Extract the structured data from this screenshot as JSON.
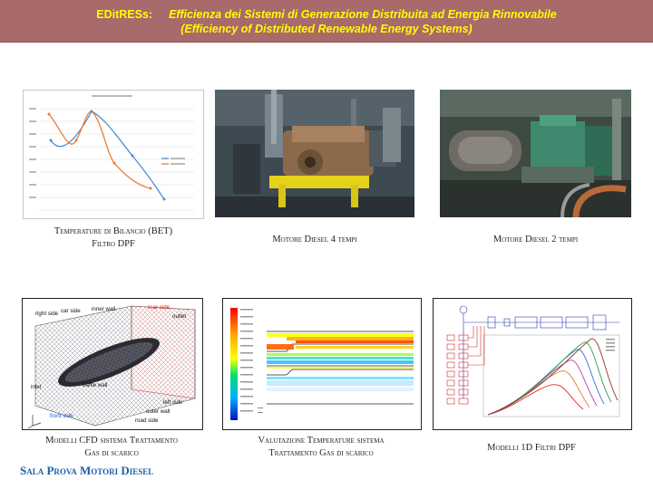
{
  "header": {
    "acronym": "EDitRESs:",
    "title_it": "Efficienza dei Sistemi di Generazione Distribuita ad Energia Rinnovabile",
    "title_en": "(Efficiency of Distributed Renewable Energy Systems)"
  },
  "panels": {
    "bet_chart": {
      "caption_line1": "Temperature di Bilancio (BET)",
      "caption_line2": "Filtro DPF",
      "colors": {
        "series1": "#4a8fd6",
        "series2": "#ee7d31"
      }
    },
    "diesel4": {
      "caption": "Motore Diesel 4 tempi"
    },
    "diesel2": {
      "caption": "Motore Diesel 2 tempi"
    },
    "cfd": {
      "caption_line1": "Modelli CFD sistema Trattamento",
      "caption_line2": "Gas di scarico",
      "labels": {
        "car_side": "car side",
        "inner_wall": "inner wall",
        "rear_side": "rear side",
        "right_side": "right side",
        "outlet": "outlet",
        "inlet": "inlet",
        "baffle_wall": "baffle wall",
        "left_side": "left side",
        "front_side": "front side",
        "outer_wall": "outer wall",
        "road_side": "road side"
      },
      "colors": {
        "label_blue": "#1a4fd6",
        "label_red": "#d81e1e"
      }
    },
    "temp_eval": {
      "caption_line1": "Valutazione Temperature sistema",
      "caption_line2": "Trattamento Gas di scarico"
    },
    "model_1d": {
      "caption": "Modelli 1D Filtri DPF"
    }
  },
  "footer": {
    "label": "Sala Prova Motori Diesel"
  }
}
